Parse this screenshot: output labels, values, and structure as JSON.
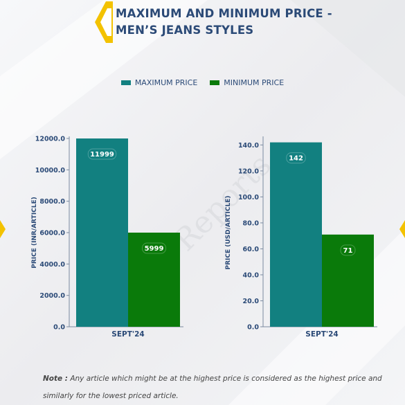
{
  "title": {
    "line1": "MAXIMUM AND MINIMUM PRICE -",
    "line2": "MEN’S JEANS STYLES"
  },
  "legend": {
    "max_label": "MAXIMUM PRICE",
    "min_label": "MINIMUM PRICE"
  },
  "colors": {
    "max": "#128080",
    "min": "#0a7a0a",
    "title": "#2b4a77",
    "accent": "#f3c200"
  },
  "note": {
    "label": "Note :",
    "text": "Any article which might be at the highest price is considered as the highest price and similarly for the lowest priced article."
  },
  "chart_data": [
    {
      "type": "bar",
      "categories": [
        "SEPT'24"
      ],
      "series": [
        {
          "name": "MAXIMUM PRICE",
          "values": [
            11999
          ]
        },
        {
          "name": "MINIMUM PRICE",
          "values": [
            5999
          ]
        }
      ],
      "value_labels": [
        "11999",
        "5999"
      ],
      "ylabel": "PRICE (INR/ARTICLE)",
      "ylim": [
        0,
        12000
      ],
      "yticks": [
        "0.0",
        "2000.0",
        "4000.0",
        "6000.0",
        "8000.0",
        "10000.0",
        "12000.0"
      ],
      "ytick_values": [
        0,
        2000,
        4000,
        6000,
        8000,
        10000,
        12000
      ]
    },
    {
      "type": "bar",
      "categories": [
        "SEPT'24"
      ],
      "series": [
        {
          "name": "MAXIMUM PRICE",
          "values": [
            142
          ]
        },
        {
          "name": "MINIMUM PRICE",
          "values": [
            71
          ]
        }
      ],
      "value_labels": [
        "142",
        "71"
      ],
      "ylabel": "PRICE (USD/ARTICLE)",
      "ylim": [
        0,
        145
      ],
      "yticks": [
        "0.0",
        "20.0",
        "40.0",
        "60.0",
        "80.0",
        "100.0",
        "120.0",
        "140.0"
      ],
      "ytick_values": [
        0,
        20,
        40,
        60,
        80,
        100,
        120,
        140
      ]
    }
  ]
}
